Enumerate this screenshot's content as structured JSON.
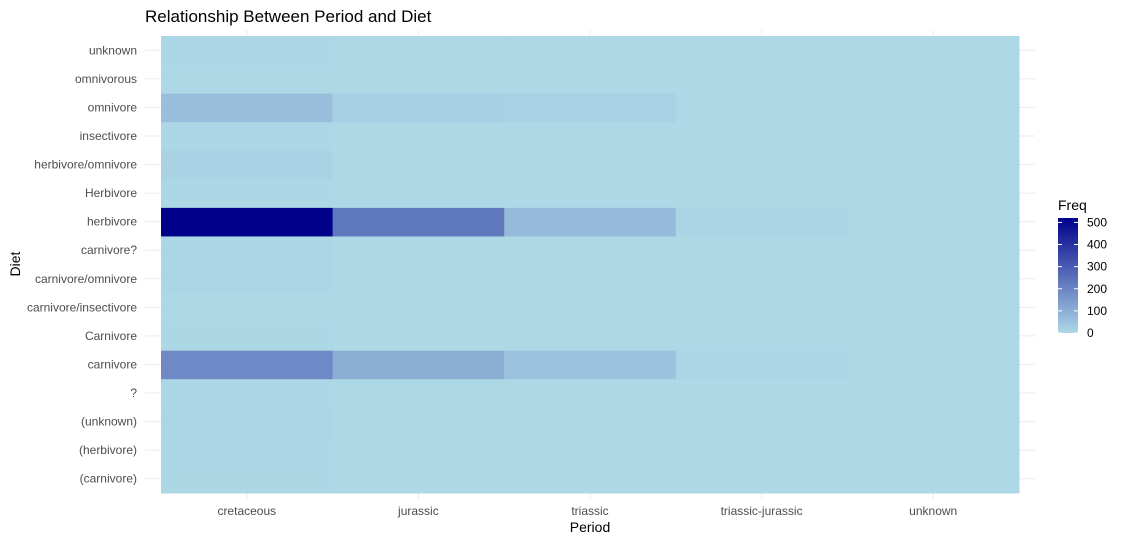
{
  "chart_data": {
    "type": "heatmap",
    "title": "Relationship Between Period and Diet",
    "xlabel": "Period",
    "ylabel": "Diet",
    "x_categories": [
      "cretaceous",
      "jurassic",
      "triassic",
      "triassic-jurassic",
      "unknown"
    ],
    "y_categories": [
      "(carnivore)",
      "(herbivore)",
      "(unknown)",
      "?",
      "carnivore",
      "Carnivore",
      "carnivore/insectivore",
      "carnivore/omnivore",
      "carnivore?",
      "herbivore",
      "Herbivore",
      "herbivore/omnivore",
      "insectivore",
      "omnivore",
      "omnivorous",
      "unknown"
    ],
    "values": [
      [
        3,
        1,
        0,
        0,
        0
      ],
      [
        2,
        0,
        0,
        0,
        0
      ],
      [
        6,
        1,
        0,
        0,
        0
      ],
      [
        2,
        0,
        0,
        0,
        0
      ],
      [
        190,
        100,
        50,
        6,
        1
      ],
      [
        3,
        0,
        0,
        0,
        0
      ],
      [
        1,
        0,
        0,
        0,
        0
      ],
      [
        5,
        1,
        0,
        0,
        0
      ],
      [
        5,
        1,
        0,
        0,
        0
      ],
      [
        520,
        230,
        70,
        8,
        1
      ],
      [
        2,
        0,
        0,
        0,
        0
      ],
      [
        12,
        1,
        0,
        0,
        0
      ],
      [
        2,
        0,
        0,
        0,
        0
      ],
      [
        60,
        20,
        15,
        1,
        0
      ],
      [
        1,
        0,
        0,
        0,
        0
      ],
      [
        2,
        0,
        0,
        0,
        0
      ]
    ],
    "legend": {
      "title": "Freq",
      "ticks": [
        0,
        100,
        200,
        300,
        400,
        500
      ],
      "range": [
        0,
        520
      ],
      "low_color": "#add8e6",
      "high_color": "#00008b",
      "position": "right"
    },
    "grid": true
  }
}
